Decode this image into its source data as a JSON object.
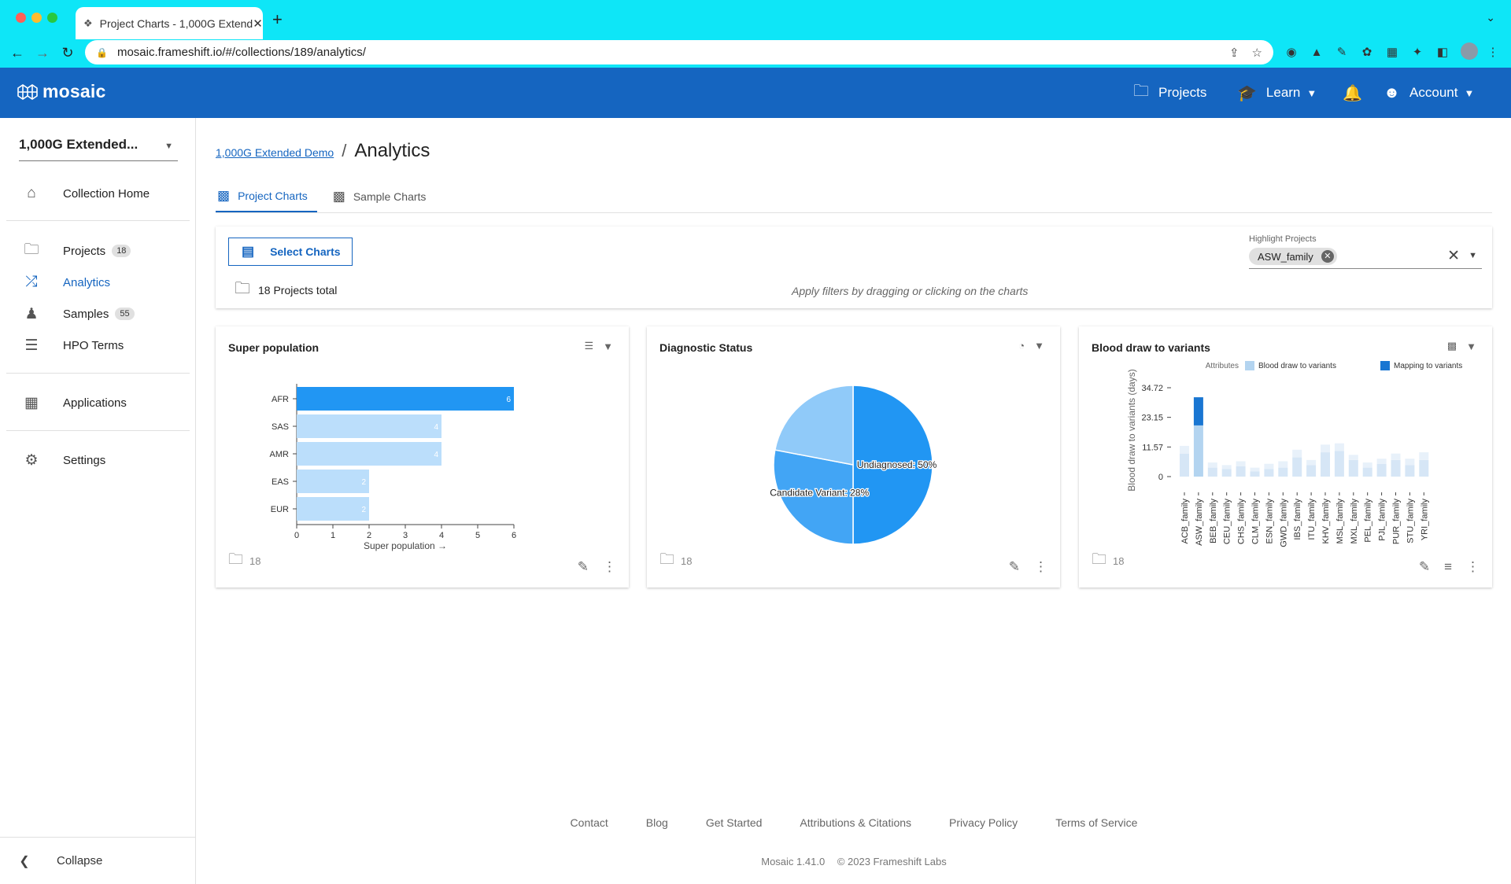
{
  "browser": {
    "tab_title": "Project Charts - 1,000G Extend",
    "url": "mosaic.frameshift.io/#/collections/189/analytics/"
  },
  "header": {
    "logo": "mosaic",
    "projects": "Projects",
    "learn": "Learn",
    "account": "Account"
  },
  "sidebar": {
    "collection": "1,000G Extended...",
    "items": [
      {
        "label": "Collection Home",
        "icon": "home-icon"
      },
      {
        "label": "Projects",
        "badge": "18",
        "icon": "folder-icon"
      },
      {
        "label": "Analytics",
        "icon": "analytics-icon",
        "active": true
      },
      {
        "label": "Samples",
        "badge": "55",
        "icon": "people-icon"
      },
      {
        "label": "HPO Terms",
        "icon": "list-icon"
      },
      {
        "label": "Applications",
        "icon": "apps-icon"
      },
      {
        "label": "Settings",
        "icon": "gear-icon"
      }
    ],
    "collapse": "Collapse"
  },
  "page": {
    "breadcrumb_link": "1,000G Extended Demo",
    "title": "Analytics",
    "tabs": [
      {
        "label": "Project Charts",
        "active": true
      },
      {
        "label": "Sample Charts",
        "active": false
      }
    ],
    "select_charts": "Select Charts",
    "projects_total": "18 Projects total",
    "hint": "Apply filters by dragging or clicking on the charts",
    "highlight_label": "Highlight Projects",
    "highlight_chip": "ASW_family"
  },
  "cards": [
    {
      "title": "Super population",
      "count": "18"
    },
    {
      "title": "Diagnostic Status",
      "count": "18"
    },
    {
      "title": "Blood draw to variants",
      "count": "18"
    }
  ],
  "chart_data": [
    {
      "type": "bar",
      "orientation": "horizontal",
      "categories": [
        "AFR",
        "SAS",
        "AMR",
        "EAS",
        "EUR"
      ],
      "values": [
        6,
        4,
        4,
        2,
        2
      ],
      "xlabel": "Super population →",
      "xlim": [
        0,
        6
      ],
      "xticks": [
        "0",
        "1",
        "2",
        "3",
        "4",
        "5",
        "6"
      ],
      "colors": [
        "#2196f3",
        "#bbdefb",
        "#bbdefb",
        "#bbdefb",
        "#bbdefb"
      ]
    },
    {
      "type": "pie",
      "slices": [
        {
          "label": "Undiagnosed: 50%",
          "value": 50,
          "color": "#2196f3"
        },
        {
          "label": "Candidate Variant: 28%",
          "value": 28,
          "color": "#42a5f5"
        },
        {
          "label": "",
          "value": 22,
          "color": "#90caf9"
        }
      ]
    },
    {
      "type": "bar",
      "stacked": true,
      "ylabel": "Blood draw to variants (days)",
      "legend_title": "Attributes",
      "legend_position": "top-right",
      "yticks": [
        "34.72",
        "23.15",
        "11.57",
        "0"
      ],
      "ylim": [
        0,
        34.72
      ],
      "categories": [
        "ACB_family",
        "ASW_family",
        "BEB_family",
        "CEU_family",
        "CHS_family",
        "CLM_family",
        "ESN_family",
        "GWD_family",
        "IBS_family",
        "ITU_family",
        "KHV_family",
        "MSL_family",
        "MXL_family",
        "PEL_family",
        "PJL_family",
        "PUR_family",
        "STU_family",
        "YRI_family"
      ],
      "series": [
        {
          "name": "Blood draw to variants",
          "color": "#b3d4f0",
          "values": [
            9,
            20,
            3.5,
            3,
            4,
            2,
            3,
            3.5,
            7.5,
            4.5,
            9.5,
            10,
            6.5,
            3.5,
            5,
            6.5,
            4.5,
            6.5
          ]
        },
        {
          "name": "Mapping to variants",
          "color": "#1976d2",
          "values": [
            3,
            11,
            2,
            1.5,
            2,
            1.5,
            2,
            2.5,
            3,
            2,
            3,
            3,
            2,
            2,
            2,
            2.5,
            2.5,
            3
          ]
        }
      ]
    }
  ],
  "footer": {
    "links": [
      "Contact",
      "Blog",
      "Get Started",
      "Attributions & Citations",
      "Privacy Policy",
      "Terms of Service"
    ],
    "version": "Mosaic 1.41.0",
    "copyright": "© 2023 Frameshift Labs"
  }
}
